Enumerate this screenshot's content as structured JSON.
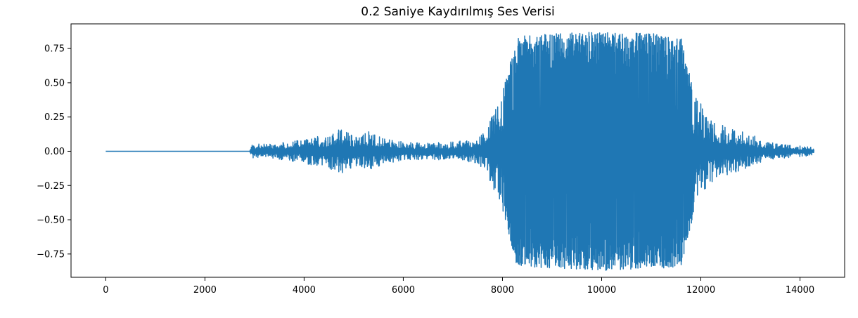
{
  "chart_data": {
    "type": "line",
    "title": "0.2 Saniye Kaydırılmış Ses Verisi",
    "xlabel": "",
    "ylabel": "",
    "xlim": [
      -700,
      14900
    ],
    "ylim": [
      -0.92,
      0.93
    ],
    "xticks": [
      0,
      2000,
      4000,
      6000,
      8000,
      10000,
      12000,
      14000
    ],
    "yticks": [
      -0.75,
      -0.5,
      -0.25,
      0.0,
      0.25,
      0.5,
      0.75
    ],
    "ytick_labels": [
      "−0.75",
      "−0.50",
      "−0.25",
      "0.00",
      "0.25",
      "0.50",
      "0.75"
    ],
    "grid": false,
    "legend": "none",
    "series": [
      {
        "color": "#1f77b4",
        "x_range": [
          0,
          14280
        ],
        "silence_until": 2900,
        "envelope": [
          [
            0,
            0.0
          ],
          [
            2900,
            0.0
          ],
          [
            2950,
            0.05
          ],
          [
            3500,
            0.06
          ],
          [
            4000,
            0.09
          ],
          [
            4500,
            0.13
          ],
          [
            4800,
            0.17
          ],
          [
            5100,
            0.1
          ],
          [
            5300,
            0.16
          ],
          [
            5600,
            0.09
          ],
          [
            6000,
            0.07
          ],
          [
            6500,
            0.06
          ],
          [
            7000,
            0.07
          ],
          [
            7500,
            0.09
          ],
          [
            7700,
            0.18
          ],
          [
            7900,
            0.35
          ],
          [
            8100,
            0.55
          ],
          [
            8250,
            0.82
          ],
          [
            8400,
            0.84
          ],
          [
            9000,
            0.86
          ],
          [
            10000,
            0.87
          ],
          [
            11000,
            0.86
          ],
          [
            11600,
            0.84
          ],
          [
            11750,
            0.62
          ],
          [
            11900,
            0.4
          ],
          [
            12200,
            0.24
          ],
          [
            12500,
            0.18
          ],
          [
            12800,
            0.15
          ],
          [
            13100,
            0.11
          ],
          [
            13300,
            0.07
          ],
          [
            13700,
            0.05
          ],
          [
            14280,
            0.03
          ]
        ]
      }
    ]
  }
}
